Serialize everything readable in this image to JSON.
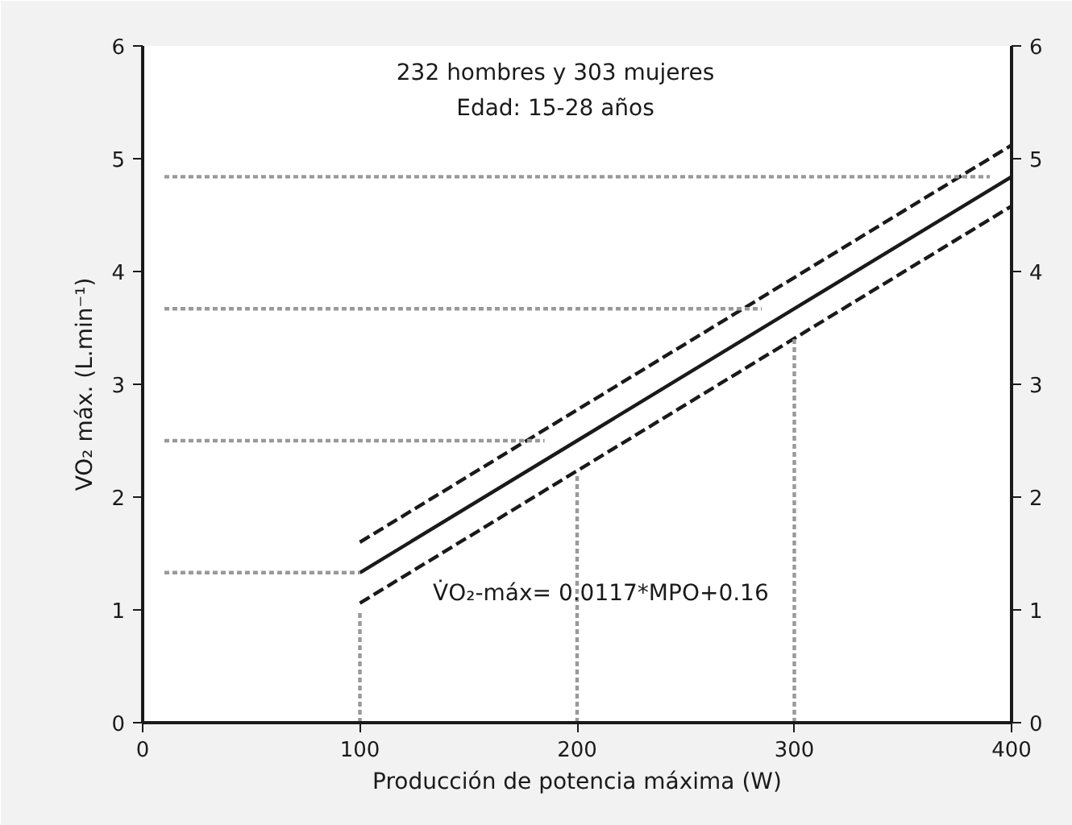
{
  "chart_data": {
    "type": "line",
    "title": "232 hombres y 303 mujeres",
    "subtitle": "Edad: 15-28 años",
    "xlabel": "Producción de potencia máxima (W)",
    "ylabel": "VO₂ máx. (L.min⁻¹)",
    "xlim": [
      0,
      400
    ],
    "xticks": [
      0,
      100,
      200,
      300,
      400
    ],
    "ylim": [
      0,
      6
    ],
    "yticks": [
      0,
      1,
      2,
      3,
      4,
      5,
      6
    ],
    "y2lim": [
      0,
      6
    ],
    "y2ticks": [
      0,
      1,
      2,
      3,
      4,
      5,
      6
    ],
    "grid": false,
    "series": [
      {
        "x": [
          100,
          200,
          300,
          400
        ],
        "values": [
          1.33,
          2.5,
          3.67,
          4.84
        ],
        "color": "#1a1a1a",
        "line_style": "solid"
      },
      {
        "x": [
          100,
          400
        ],
        "values": [
          1.6,
          5.12
        ],
        "color": "#1a1a1a",
        "line_style": "dashed"
      },
      {
        "x": [
          100,
          400
        ],
        "values": [
          1.06,
          4.58
        ],
        "color": "#1a1a1a",
        "line_style": "dashed"
      },
      {
        "x": [
          10,
          100
        ],
        "values": [
          1.33,
          1.33
        ],
        "color": "#999999",
        "line_style": "dotted"
      },
      {
        "x": [
          10,
          185
        ],
        "values": [
          2.5,
          2.5
        ],
        "color": "#999999",
        "line_style": "dotted"
      },
      {
        "x": [
          10,
          285
        ],
        "values": [
          3.67,
          3.67
        ],
        "color": "#999999",
        "line_style": "dotted"
      },
      {
        "x": [
          10,
          390
        ],
        "values": [
          4.84,
          4.84
        ],
        "color": "#999999",
        "line_style": "dotted"
      },
      {
        "x": [
          100,
          100
        ],
        "values": [
          0,
          1.0
        ],
        "color": "#999999",
        "line_style": "dotted"
      },
      {
        "x": [
          200,
          200
        ],
        "values": [
          0,
          2.2
        ],
        "color": "#999999",
        "line_style": "dotted"
      },
      {
        "x": [
          300,
          300
        ],
        "values": [
          0,
          3.4
        ],
        "color": "#999999",
        "line_style": "dotted"
      }
    ],
    "annotations": [
      "V̇O₂-máx= 0.0117*MPO+0.16"
    ]
  }
}
